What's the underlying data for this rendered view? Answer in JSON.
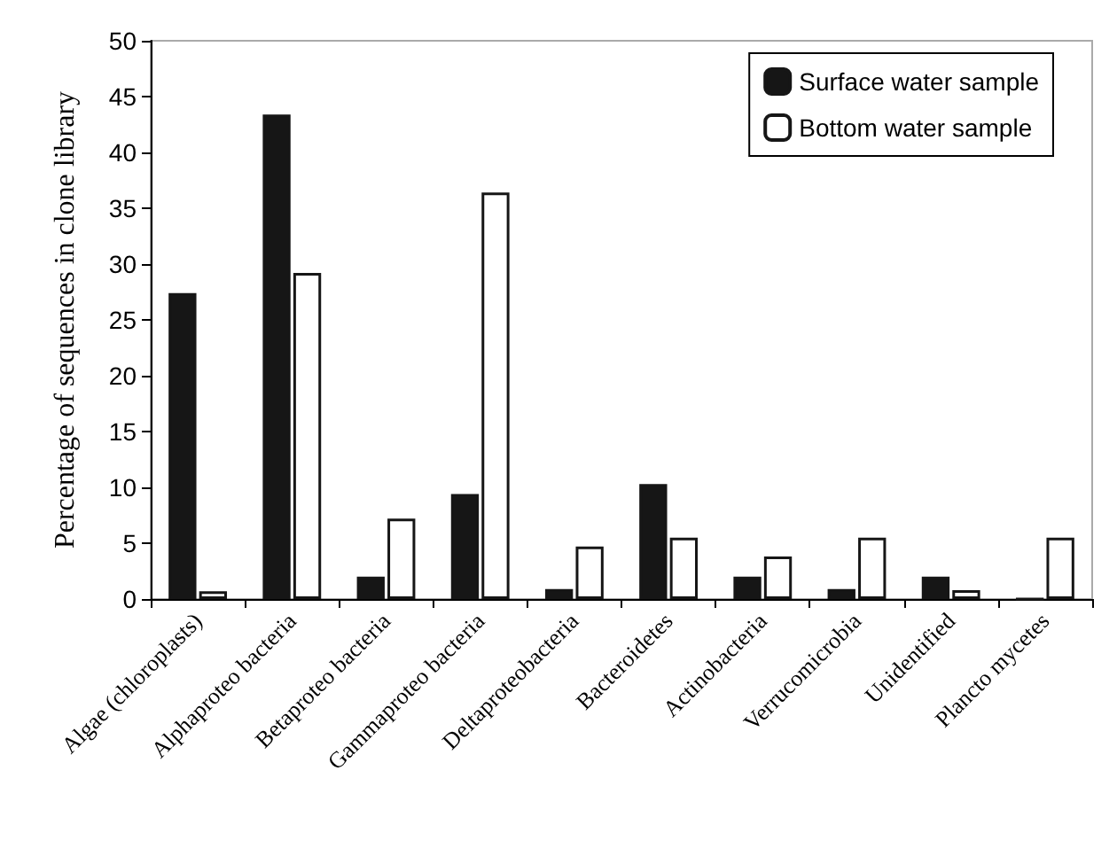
{
  "chart_data": {
    "type": "bar",
    "ylabel": "Percentage of sequences in clone library",
    "categories": [
      "Algae (chloroplasts)",
      "Alphaproteo bacteria",
      "Betaproteo bacteria",
      "Gammaproteo bacteria",
      "Deltaproteobacteria",
      "Bacteroidetes",
      "Actinobacteria",
      "Verrucomicrobia",
      "Unidentified",
      "Plancto mycetes"
    ],
    "series": [
      {
        "name": "Surface water sample",
        "color": "#161616",
        "values": [
          27.4,
          43.4,
          2.0,
          9.4,
          0.9,
          10.3,
          2.0,
          0.9,
          2.0,
          0
        ]
      },
      {
        "name": "Bottom water sample",
        "color": "#ffffff",
        "values": [
          0.7,
          29.2,
          7.2,
          36.4,
          4.7,
          5.5,
          3.8,
          5.5,
          0.8,
          5.5
        ]
      }
    ],
    "ylim": [
      0,
      50
    ],
    "yticks": [
      0,
      5,
      10,
      15,
      20,
      25,
      30,
      35,
      40,
      45,
      50
    ],
    "grid": false,
    "legend": "top right"
  }
}
